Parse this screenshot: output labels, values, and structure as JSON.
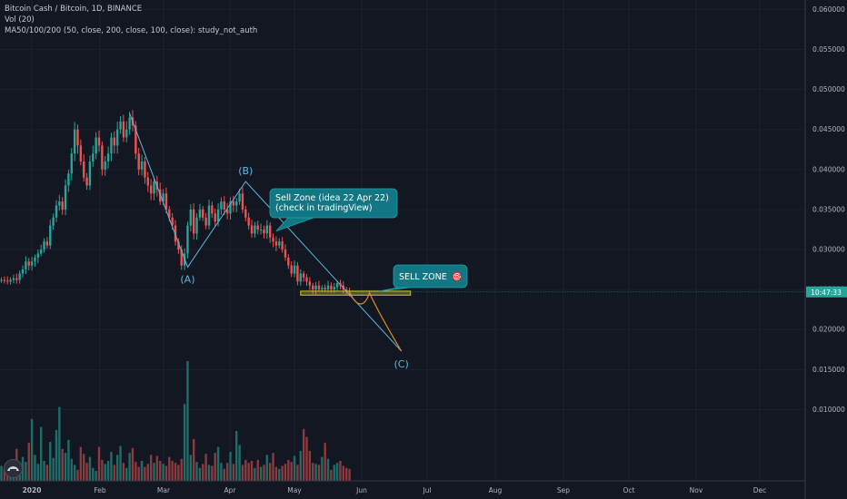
{
  "header": {
    "symbol": "Bitcoin Cash / Bitcoin, 1D, BINANCE",
    "vol": "Vol (20)",
    "ma": "MA50/100/200 (50, close, 200, close, 100, close): study_not_auth"
  },
  "colors": {
    "background": "#131722",
    "up": "#26a69a",
    "down": "#ef5350",
    "wave": "#5cb8e0",
    "path": "#e08a1e",
    "zone": "#c9c52a",
    "bubble": "#127683"
  },
  "chart_data": {
    "type": "candlestick",
    "x_tick_labels": [
      "2020",
      "Feb",
      "Mar",
      "Apr",
      "May",
      "Jun",
      "Jul",
      "Aug",
      "Sep",
      "Oct",
      "Nov",
      "Dec"
    ],
    "y_tick_labels": [
      "0.060000",
      "0.055000",
      "0.050000",
      "0.045000",
      "0.040000",
      "0.035000",
      "0.030000",
      "0.025000",
      "0.020000",
      "0.015000",
      "0.010000"
    ],
    "ylim": [
      0.0054,
      0.0605
    ],
    "price_label": "10:47:33",
    "price": 0.0247,
    "series": {
      "close": [
        0.0262,
        0.0261,
        0.026,
        0.0262,
        0.0264,
        0.0262,
        0.027,
        0.0275,
        0.0285,
        0.028,
        0.0285,
        0.029,
        0.0295,
        0.03,
        0.031,
        0.0305,
        0.033,
        0.034,
        0.0355,
        0.036,
        0.035,
        0.038,
        0.0395,
        0.042,
        0.045,
        0.043,
        0.041,
        0.039,
        0.038,
        0.041,
        0.042,
        0.044,
        0.043,
        0.04,
        0.041,
        0.042,
        0.044,
        0.043,
        0.045,
        0.046,
        0.044,
        0.045,
        0.0465,
        0.0455,
        0.042,
        0.04,
        0.041,
        0.039,
        0.038,
        0.037,
        0.0385,
        0.0375,
        0.036,
        0.037,
        0.035,
        0.034,
        0.033,
        0.031,
        0.03,
        0.028,
        0.0295,
        0.033,
        0.035,
        0.032,
        0.034,
        0.035,
        0.034,
        0.033,
        0.0355,
        0.0345,
        0.0335,
        0.035,
        0.036,
        0.035,
        0.0345,
        0.036,
        0.0355,
        0.036,
        0.037,
        0.035,
        0.034,
        0.033,
        0.032,
        0.033,
        0.0325,
        0.0325,
        0.032,
        0.033,
        0.0315,
        0.031,
        0.0305,
        0.031,
        0.03,
        0.029,
        0.028,
        0.027,
        0.028,
        0.026,
        0.027,
        0.0265,
        0.026,
        0.0255,
        0.025,
        0.0255,
        0.025,
        0.0252,
        0.025,
        0.0255,
        0.025,
        0.0253,
        0.0258,
        0.0255,
        0.025,
        0.0248,
        0.0247
      ],
      "volume": [
        1.5,
        1.2,
        1.0,
        1.3,
        1.8,
        3.2,
        1.1,
        2.4,
        1.9,
        3.8,
        6.2,
        2.6,
        1.7,
        5.4,
        2.0,
        1.6,
        3.9,
        2.3,
        5.1,
        7.4,
        3.2,
        2.8,
        4.1,
        2.2,
        1.6,
        1.1,
        3.4,
        2.7,
        1.8,
        2.4,
        1.3,
        1.0,
        3.4,
        2.1,
        1.7,
        2.0,
        2.9,
        1.6,
        2.6,
        3.5,
        1.8,
        1.3,
        2.8,
        3.3,
        1.9,
        1.4,
        2.0,
        1.4,
        1.7,
        2.6,
        1.8,
        2.5,
        2.0,
        1.7,
        1.5,
        2.4,
        2.0,
        1.8,
        1.6,
        2.2,
        7.7,
        12.0,
        2.6,
        4.2,
        1.9,
        1.3,
        1.7,
        2.7,
        1.6,
        1.5,
        2.8,
        3.4,
        1.8,
        1.2,
        1.8,
        2.9,
        1.7,
        5.0,
        3.6,
        1.6,
        2.1,
        1.8,
        2.0,
        1.3,
        2.1,
        1.4,
        1.6,
        2.6,
        1.8,
        2.8,
        1.4,
        1.2,
        1.5,
        1.7,
        2.1,
        1.9,
        2.5,
        1.6,
        3.0,
        5.2,
        4.4,
        3.0,
        1.8,
        1.7,
        1.6,
        2.4,
        3.8,
        2.2,
        1.1,
        1.6,
        1.8,
        2.0,
        1.5,
        1.3,
        1.2
      ]
    },
    "annotations": {
      "wave_labels": [
        "(A)",
        "(B)",
        "(C)"
      ],
      "sell_zone_note": [
        "Sell Zone (idea 22 Apr 22)",
        "(check in tradingView)"
      ],
      "sell_zone_label": "SELL ZONE",
      "sell_zone_emoji": "🎯",
      "wave_points": [
        [
          0.047,
          0
        ],
        [
          0.0278,
          1
        ],
        [
          0.0385,
          2
        ],
        [
          0.0173,
          3
        ]
      ],
      "zone_range": [
        0.0243,
        0.0248
      ]
    }
  }
}
